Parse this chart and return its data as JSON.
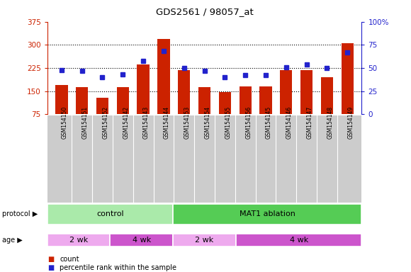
{
  "title": "GDS2561 / 98057_at",
  "samples": [
    "GSM154150",
    "GSM154151",
    "GSM154152",
    "GSM154142",
    "GSM154143",
    "GSM154144",
    "GSM154153",
    "GSM154154",
    "GSM154155",
    "GSM154156",
    "GSM154145",
    "GSM154146",
    "GSM154147",
    "GSM154148",
    "GSM154149"
  ],
  "counts": [
    170,
    163,
    128,
    163,
    237,
    320,
    218,
    162,
    148,
    165,
    165,
    218,
    218,
    195,
    305
  ],
  "percentiles": [
    48,
    47,
    40,
    43,
    58,
    68,
    50,
    47,
    40,
    42,
    42,
    51,
    54,
    50,
    67
  ],
  "left_ylim": [
    75,
    375
  ],
  "right_ylim": [
    0,
    100
  ],
  "left_yticks": [
    75,
    150,
    225,
    300,
    375
  ],
  "right_yticks": [
    0,
    25,
    50,
    75,
    100
  ],
  "right_yticklabels": [
    "0",
    "25",
    "50",
    "75",
    "100%"
  ],
  "bar_color": "#cc2200",
  "dot_color": "#2222cc",
  "protocol_groups": [
    {
      "label": "control",
      "start": 0,
      "end": 6,
      "color": "#aaeaaa"
    },
    {
      "label": "MAT1 ablation",
      "start": 6,
      "end": 15,
      "color": "#55cc55"
    }
  ],
  "age_groups": [
    {
      "label": "2 wk",
      "start": 0,
      "end": 3,
      "color": "#eeaaee"
    },
    {
      "label": "4 wk",
      "start": 3,
      "end": 6,
      "color": "#cc55cc"
    },
    {
      "label": "2 wk",
      "start": 6,
      "end": 9,
      "color": "#eeaaee"
    },
    {
      "label": "4 wk",
      "start": 9,
      "end": 15,
      "color": "#cc55cc"
    }
  ],
  "protocol_label": "protocol",
  "age_label": "age",
  "legend_count_label": "count",
  "legend_pct_label": "percentile rank within the sample",
  "background_color": "#ffffff",
  "tick_label_color_left": "#cc2200",
  "tick_label_color_right": "#2222cc",
  "xlabel_bg": "#cccccc",
  "fig_width": 5.8,
  "fig_height": 3.84,
  "dpi": 100
}
